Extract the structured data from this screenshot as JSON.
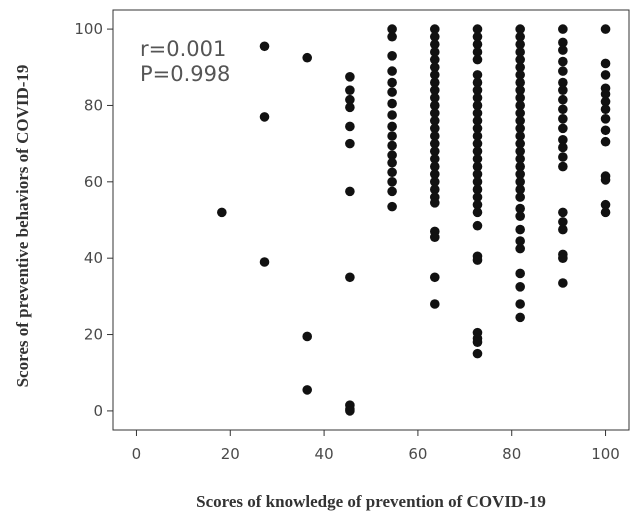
{
  "chart_data": {
    "type": "scatter",
    "title": "",
    "xlabel": "Scores of knowledge of prevention of COVID-19",
    "ylabel": "Scores of preventive behaviors of COVID-19",
    "xlim": [
      -5,
      105
    ],
    "ylim": [
      -5,
      105
    ],
    "x_ticks": [
      0,
      20,
      40,
      60,
      80,
      100
    ],
    "y_ticks": [
      0,
      20,
      40,
      60,
      80,
      100
    ],
    "grid": false,
    "annotations": [
      "r=0.001",
      "P=0.998"
    ],
    "colors": {
      "points": "#111111",
      "frame": "#333333",
      "text": "#4a4a4a"
    },
    "points": [
      [
        18.2,
        52
      ],
      [
        27.3,
        95.5
      ],
      [
        27.3,
        77
      ],
      [
        27.3,
        39
      ],
      [
        36.4,
        92.5
      ],
      [
        36.4,
        19.5
      ],
      [
        36.4,
        5.5
      ],
      [
        45.5,
        87.5
      ],
      [
        45.5,
        84
      ],
      [
        45.5,
        81.5
      ],
      [
        45.5,
        79.5
      ],
      [
        45.5,
        74.5
      ],
      [
        45.5,
        70
      ],
      [
        45.5,
        57.5
      ],
      [
        45.5,
        35
      ],
      [
        45.5,
        1.5
      ],
      [
        45.5,
        0.5
      ],
      [
        45.5,
        0
      ],
      [
        54.5,
        100
      ],
      [
        54.5,
        98
      ],
      [
        54.5,
        93
      ],
      [
        54.5,
        89
      ],
      [
        54.5,
        86
      ],
      [
        54.5,
        83.5
      ],
      [
        54.5,
        80.5
      ],
      [
        54.5,
        77.5
      ],
      [
        54.5,
        74.5
      ],
      [
        54.5,
        72
      ],
      [
        54.5,
        69.5
      ],
      [
        54.5,
        67
      ],
      [
        54.5,
        65
      ],
      [
        54.5,
        62.5
      ],
      [
        54.5,
        60
      ],
      [
        54.5,
        57.5
      ],
      [
        54.5,
        53.5
      ],
      [
        63.6,
        100
      ],
      [
        63.6,
        98
      ],
      [
        63.6,
        96
      ],
      [
        63.6,
        94
      ],
      [
        63.6,
        92
      ],
      [
        63.6,
        90
      ],
      [
        63.6,
        88
      ],
      [
        63.6,
        86
      ],
      [
        63.6,
        84
      ],
      [
        63.6,
        82
      ],
      [
        63.6,
        80
      ],
      [
        63.6,
        78
      ],
      [
        63.6,
        76
      ],
      [
        63.6,
        74
      ],
      [
        63.6,
        72
      ],
      [
        63.6,
        70
      ],
      [
        63.6,
        68
      ],
      [
        63.6,
        66
      ],
      [
        63.6,
        64
      ],
      [
        63.6,
        62
      ],
      [
        63.6,
        60
      ],
      [
        63.6,
        58
      ],
      [
        63.6,
        56
      ],
      [
        63.6,
        54.5
      ],
      [
        63.6,
        47
      ],
      [
        63.6,
        45.5
      ],
      [
        63.6,
        35
      ],
      [
        63.6,
        28
      ],
      [
        72.7,
        100
      ],
      [
        72.7,
        98
      ],
      [
        72.7,
        96
      ],
      [
        72.7,
        94
      ],
      [
        72.7,
        92
      ],
      [
        72.7,
        88
      ],
      [
        72.7,
        86
      ],
      [
        72.7,
        84
      ],
      [
        72.7,
        82
      ],
      [
        72.7,
        80
      ],
      [
        72.7,
        78
      ],
      [
        72.7,
        76
      ],
      [
        72.7,
        74
      ],
      [
        72.7,
        72
      ],
      [
        72.7,
        70
      ],
      [
        72.7,
        68
      ],
      [
        72.7,
        66
      ],
      [
        72.7,
        64
      ],
      [
        72.7,
        62
      ],
      [
        72.7,
        60
      ],
      [
        72.7,
        58
      ],
      [
        72.7,
        56
      ],
      [
        72.7,
        54
      ],
      [
        72.7,
        52
      ],
      [
        72.7,
        48.5
      ],
      [
        72.7,
        40.5
      ],
      [
        72.7,
        39.5
      ],
      [
        72.7,
        20.5
      ],
      [
        72.7,
        19
      ],
      [
        72.7,
        18
      ],
      [
        72.7,
        15
      ],
      [
        81.8,
        100
      ],
      [
        81.8,
        98
      ],
      [
        81.8,
        96
      ],
      [
        81.8,
        94
      ],
      [
        81.8,
        92
      ],
      [
        81.8,
        90
      ],
      [
        81.8,
        88
      ],
      [
        81.8,
        86
      ],
      [
        81.8,
        84
      ],
      [
        81.8,
        82
      ],
      [
        81.8,
        80
      ],
      [
        81.8,
        78
      ],
      [
        81.8,
        76
      ],
      [
        81.8,
        74
      ],
      [
        81.8,
        72
      ],
      [
        81.8,
        70
      ],
      [
        81.8,
        68
      ],
      [
        81.8,
        66
      ],
      [
        81.8,
        64
      ],
      [
        81.8,
        62
      ],
      [
        81.8,
        60
      ],
      [
        81.8,
        58
      ],
      [
        81.8,
        56
      ],
      [
        81.8,
        53
      ],
      [
        81.8,
        51
      ],
      [
        81.8,
        47.5
      ],
      [
        81.8,
        44.5
      ],
      [
        81.8,
        42.5
      ],
      [
        81.8,
        36
      ],
      [
        81.8,
        32.5
      ],
      [
        81.8,
        28
      ],
      [
        81.8,
        24.5
      ],
      [
        90.9,
        100
      ],
      [
        90.9,
        96.5
      ],
      [
        90.9,
        94.5
      ],
      [
        90.9,
        91.5
      ],
      [
        90.9,
        89
      ],
      [
        90.9,
        86
      ],
      [
        90.9,
        84
      ],
      [
        90.9,
        81.5
      ],
      [
        90.9,
        79
      ],
      [
        90.9,
        76.5
      ],
      [
        90.9,
        74
      ],
      [
        90.9,
        71
      ],
      [
        90.9,
        69
      ],
      [
        90.9,
        66.5
      ],
      [
        90.9,
        64
      ],
      [
        90.9,
        52
      ],
      [
        90.9,
        49.5
      ],
      [
        90.9,
        47.5
      ],
      [
        90.9,
        41
      ],
      [
        90.9,
        40
      ],
      [
        90.9,
        33.5
      ],
      [
        100,
        100
      ],
      [
        100,
        91
      ],
      [
        100,
        88
      ],
      [
        100,
        84.5
      ],
      [
        100,
        83
      ],
      [
        100,
        81
      ],
      [
        100,
        79
      ],
      [
        100,
        76.5
      ],
      [
        100,
        73.5
      ],
      [
        100,
        70.5
      ],
      [
        100,
        61.5
      ],
      [
        100,
        60.5
      ],
      [
        100,
        54
      ],
      [
        100,
        52
      ]
    ]
  }
}
